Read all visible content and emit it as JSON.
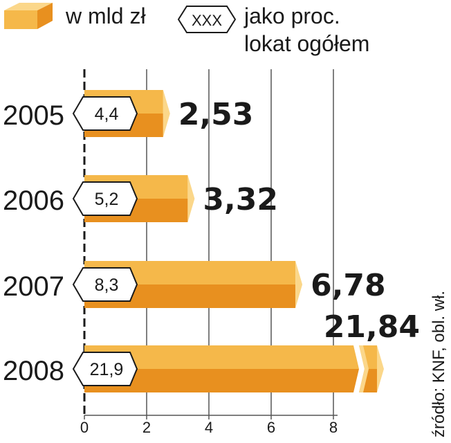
{
  "legend": {
    "value_label": "w mld zł",
    "pct_box_text": "XXX",
    "pct_label_line1": "jako proc.",
    "pct_label_line2": "lokat ogółem"
  },
  "source": "źródło: KNF, obl. wł.",
  "colors": {
    "bar_top": "#f5b84a",
    "bar_bottom": "#e8901f",
    "bar_tip": "#fbd78a",
    "grid": "#555555",
    "text": "#1a1a1a"
  },
  "chart_data": {
    "type": "bar",
    "orientation": "horizontal",
    "categories": [
      "2005",
      "2006",
      "2007",
      "2008"
    ],
    "values": [
      2.53,
      3.32,
      6.78,
      21.84
    ],
    "value_labels": [
      "2,53",
      "3,32",
      "6,78",
      "21,84"
    ],
    "percent_of_total": [
      "4,4",
      "5,2",
      "8,3",
      "21,9"
    ],
    "xticks": [
      "0",
      "2",
      "4",
      "6",
      "8"
    ],
    "xlim": [
      0,
      8
    ],
    "axis_break": true,
    "grid": true
  }
}
